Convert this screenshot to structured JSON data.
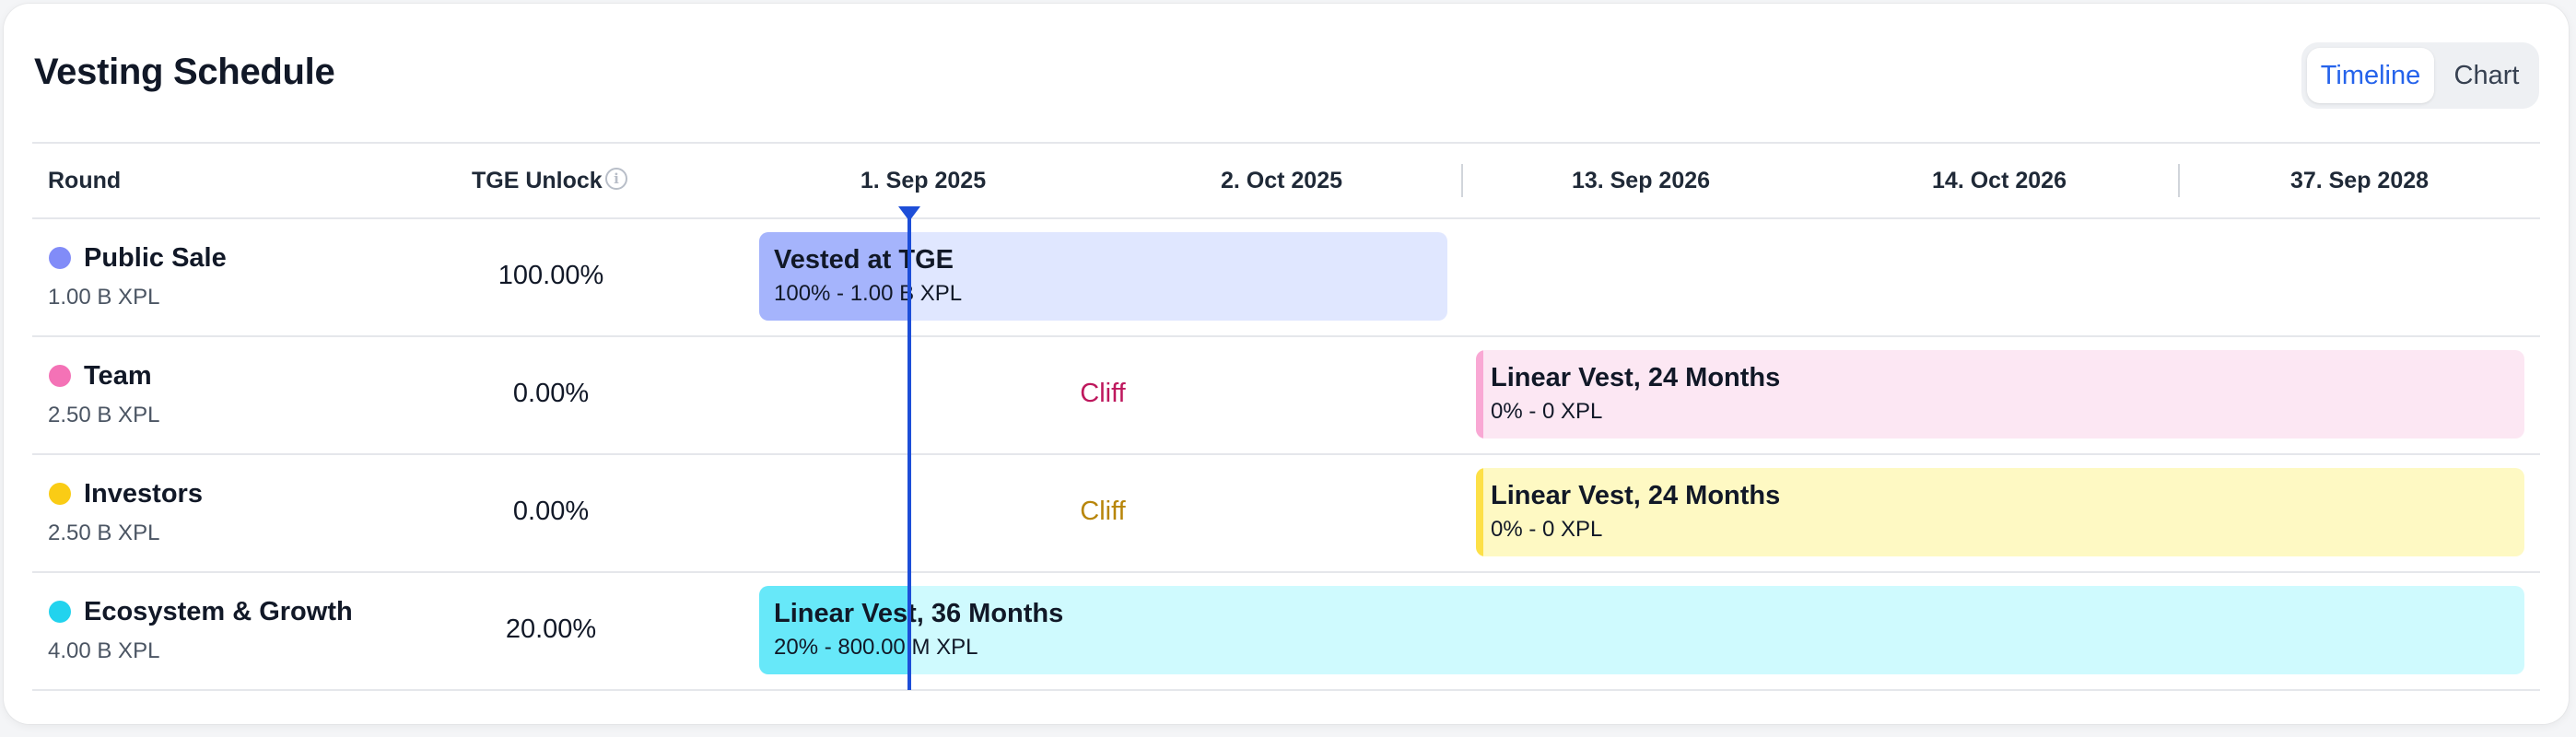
{
  "title": "Vesting Schedule",
  "view_toggle": {
    "active": "Timeline",
    "inactive": "Chart"
  },
  "table": {
    "headers": {
      "round": "Round",
      "tge_unlock": "TGE Unlock"
    },
    "dates": [
      "1. Sep 2025",
      "2. Oct 2025",
      "13. Sep 2026",
      "14. Oct 2026",
      "37. Sep 2028"
    ],
    "rows": [
      {
        "name": "Public Sale",
        "amount": "1.00 B XPL",
        "tge": "100.00%",
        "dot_color": "#818cf8",
        "bar": {
          "title": "Vested at TGE",
          "detail": "100% - 1.00 B XPL"
        }
      },
      {
        "name": "Team",
        "amount": "2.50 B XPL",
        "tge": "0.00%",
        "dot_color": "#f472b6",
        "cliff": "Cliff",
        "cliff_color": "#be185d",
        "bar": {
          "title": "Linear Vest, 24 Months",
          "detail": "0% - 0 XPL"
        }
      },
      {
        "name": "Investors",
        "amount": "2.50 B XPL",
        "tge": "0.00%",
        "dot_color": "#facc15",
        "cliff": "Cliff",
        "cliff_color": "#b8860b",
        "bar": {
          "title": "Linear Vest, 24 Months",
          "detail": "0% - 0 XPL"
        }
      },
      {
        "name": "Ecosystem & Growth",
        "amount": "4.00 B XPL",
        "tge": "20.00%",
        "dot_color": "#22d3ee",
        "bar": {
          "title": "Linear Vest, 36 Months",
          "detail": "20% - 800.00 M XPL"
        }
      }
    ]
  },
  "info_icon": "info-circle-icon",
  "current_date_marker": "today-marker"
}
